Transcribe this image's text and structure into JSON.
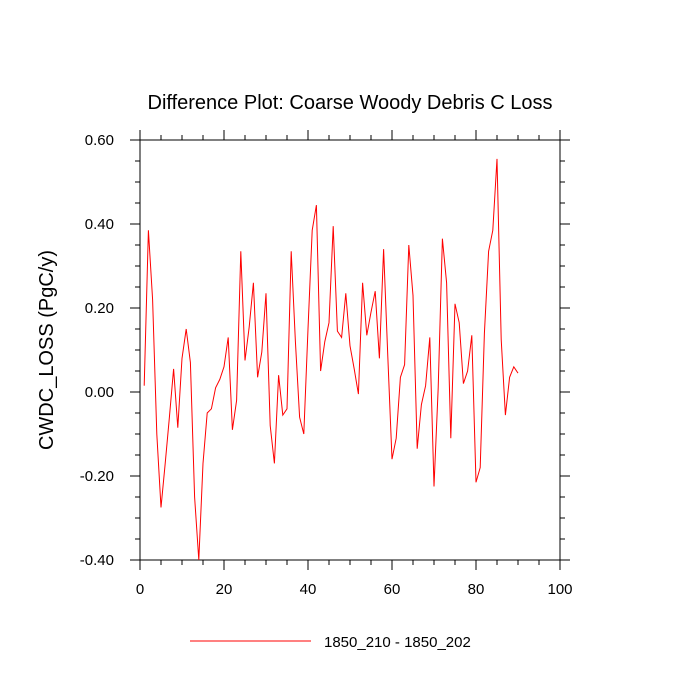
{
  "chart_data": {
    "type": "line",
    "title": "Difference Plot: Coarse Woody Debris C Loss",
    "xlabel": "",
    "ylabel": "CWDC_LOSS  (PgC/y)",
    "xlim": [
      0,
      100
    ],
    "ylim": [
      -0.4,
      0.6
    ],
    "x_ticks": [
      0,
      20,
      40,
      60,
      80,
      100
    ],
    "x_tick_labels": [
      "0",
      "20",
      "40",
      "60",
      "80",
      "100"
    ],
    "y_ticks": [
      -0.4,
      -0.2,
      0.0,
      0.2,
      0.4,
      0.6
    ],
    "y_tick_labels": [
      "-0.40",
      "-0.20",
      "0.00",
      "0.20",
      "0.40",
      "0.60"
    ],
    "grid": false,
    "legend_position": "bottom",
    "series": [
      {
        "name": "1850_210 - 1850_202",
        "color": "#ff0000",
        "x": [
          1,
          2,
          3,
          4,
          5,
          6,
          7,
          8,
          9,
          10,
          11,
          12,
          13,
          14,
          15,
          16,
          17,
          18,
          19,
          20,
          21,
          22,
          23,
          24,
          25,
          26,
          27,
          28,
          29,
          30,
          31,
          32,
          33,
          34,
          35,
          36,
          37,
          38,
          39,
          40,
          41,
          42,
          43,
          44,
          45,
          46,
          47,
          48,
          49,
          50,
          51,
          52,
          53,
          54,
          55,
          56,
          57,
          58,
          59,
          60,
          61,
          62,
          63,
          64,
          65,
          66,
          67,
          68,
          69,
          70,
          71,
          72,
          73,
          74,
          75,
          76,
          77,
          78,
          79,
          80,
          81,
          82,
          83,
          84,
          85,
          86,
          87,
          88,
          89,
          90
        ],
        "values": [
          0.015,
          0.385,
          0.22,
          -0.1,
          -0.275,
          -0.17,
          -0.06,
          0.055,
          -0.085,
          0.08,
          0.15,
          0.07,
          -0.25,
          -0.4,
          -0.17,
          -0.05,
          -0.04,
          0.01,
          0.03,
          0.06,
          0.13,
          -0.09,
          -0.02,
          0.335,
          0.075,
          0.155,
          0.26,
          0.035,
          0.095,
          0.235,
          -0.08,
          -0.17,
          0.04,
          -0.055,
          -0.04,
          0.335,
          0.12,
          -0.06,
          -0.1,
          0.15,
          0.385,
          0.445,
          0.05,
          0.12,
          0.165,
          0.395,
          0.145,
          0.13,
          0.235,
          0.11,
          0.055,
          -0.005,
          0.26,
          0.135,
          0.19,
          0.24,
          0.08,
          0.34,
          0.085,
          -0.16,
          -0.11,
          0.035,
          0.065,
          0.35,
          0.23,
          -0.135,
          -0.03,
          0.015,
          0.13,
          -0.225,
          0.01,
          0.365,
          0.26,
          -0.11,
          0.21,
          0.165,
          0.02,
          0.05,
          0.135,
          -0.215,
          -0.18,
          0.14,
          0.335,
          0.385,
          0.555,
          0.125,
          -0.055,
          0.035,
          0.06,
          0.045
        ]
      }
    ]
  }
}
